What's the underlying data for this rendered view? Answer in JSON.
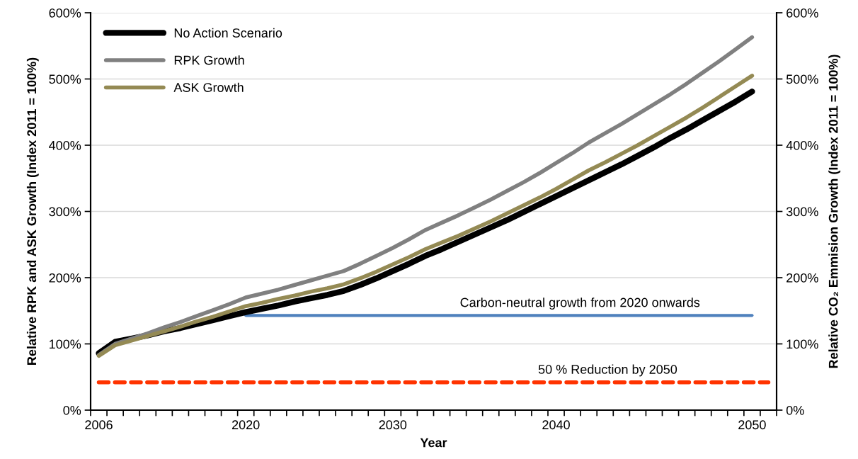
{
  "chart_data": {
    "type": "line",
    "xlabel": "Year",
    "ylabel": "Relative RPK and ASK Growth (Index 2011 = 100%)",
    "y2label": "Relative CO₂ Emmision Growth (Index 2011 = 100%)",
    "categories": [
      "2006",
      null,
      null,
      null,
      null,
      null,
      null,
      null,
      null,
      "2020",
      null,
      null,
      null,
      null,
      null,
      null,
      null,
      null,
      "2030",
      null,
      null,
      null,
      null,
      null,
      null,
      null,
      null,
      null,
      "2040",
      null,
      null,
      null,
      null,
      null,
      null,
      null,
      null,
      null,
      null,
      null,
      "2050",
      null
    ],
    "ylim": [
      0,
      600
    ],
    "yticks": [
      {
        "value": 0,
        "label": "0%"
      },
      {
        "value": 100,
        "label": "100%"
      },
      {
        "value": 200,
        "label": "200%"
      },
      {
        "value": 300,
        "label": "300%"
      },
      {
        "value": 400,
        "label": "400%"
      },
      {
        "value": 500,
        "label": "500%"
      },
      {
        "value": 600,
        "label": "600%"
      }
    ],
    "y2lim": [
      0,
      600
    ],
    "y2ticks": [
      {
        "value": 0,
        "label": "0%"
      },
      {
        "value": 100,
        "label": "100%"
      },
      {
        "value": 200,
        "label": "200%"
      },
      {
        "value": 300,
        "label": "300%"
      },
      {
        "value": 400,
        "label": "400%"
      },
      {
        "value": 500,
        "label": "500%"
      },
      {
        "value": 600,
        "label": "600%"
      }
    ],
    "grid": "y",
    "legend": "top left",
    "series": [
      {
        "name": "No Action Scenario",
        "color": "#000000",
        "values": [
          86,
          103,
          108,
          113,
          119,
          124,
          130,
          136,
          142,
          148,
          153,
          158,
          164,
          169,
          174,
          180,
          189,
          199,
          210,
          221,
          233,
          243,
          254,
          265,
          276,
          287,
          299,
          311,
          323,
          335,
          347,
          359,
          371,
          384,
          397,
          411,
          424,
          438,
          452,
          466,
          481,
          null
        ]
      },
      {
        "name": "RPK Growth",
        "color": "#808080",
        "values": [
          83,
          100,
          108,
          116,
          125,
          133,
          142,
          151,
          160,
          170,
          176,
          182,
          189,
          196,
          203,
          210,
          221,
          233,
          245,
          258,
          272,
          283,
          294,
          306,
          318,
          331,
          344,
          358,
          373,
          388,
          404,
          418,
          432,
          447,
          462,
          477,
          493,
          510,
          527,
          545,
          563,
          null
        ]
      },
      {
        "name": "ASK Growth",
        "color": "#948a54",
        "values": [
          82,
          98,
          105,
          112,
          119,
          126,
          134,
          141,
          149,
          157,
          162,
          168,
          173,
          179,
          184,
          190,
          199,
          209,
          220,
          231,
          243,
          253,
          263,
          274,
          285,
          297,
          309,
          321,
          334,
          348,
          362,
          374,
          387,
          400,
          414,
          428,
          442,
          457,
          473,
          489,
          505,
          null
        ]
      },
      {
        "color": "#4f81bd",
        "axis": "y2",
        "values": [
          null,
          null,
          null,
          null,
          null,
          null,
          null,
          null,
          null,
          143,
          143,
          143,
          143,
          143,
          143,
          143,
          143,
          143,
          143,
          143,
          143,
          143,
          143,
          143,
          143,
          143,
          143,
          143,
          143,
          143,
          143,
          143,
          143,
          143,
          143,
          143,
          143,
          143,
          143,
          143,
          143,
          null
        ]
      },
      {
        "color": "#ff3300",
        "axis": "y2",
        "line_style": "dashed",
        "values": [
          42,
          42,
          42,
          42,
          42,
          42,
          42,
          42,
          42,
          42,
          42,
          42,
          42,
          42,
          42,
          42,
          42,
          42,
          42,
          42,
          42,
          42,
          42,
          42,
          42,
          42,
          42,
          42,
          42,
          42,
          42,
          42,
          42,
          42,
          42,
          42,
          42,
          42,
          42,
          42,
          42,
          42
        ]
      }
    ],
    "annotations": [
      "Carbon-neutral growth from 2020 onwards",
      "50 % Reduction by 2050"
    ]
  }
}
